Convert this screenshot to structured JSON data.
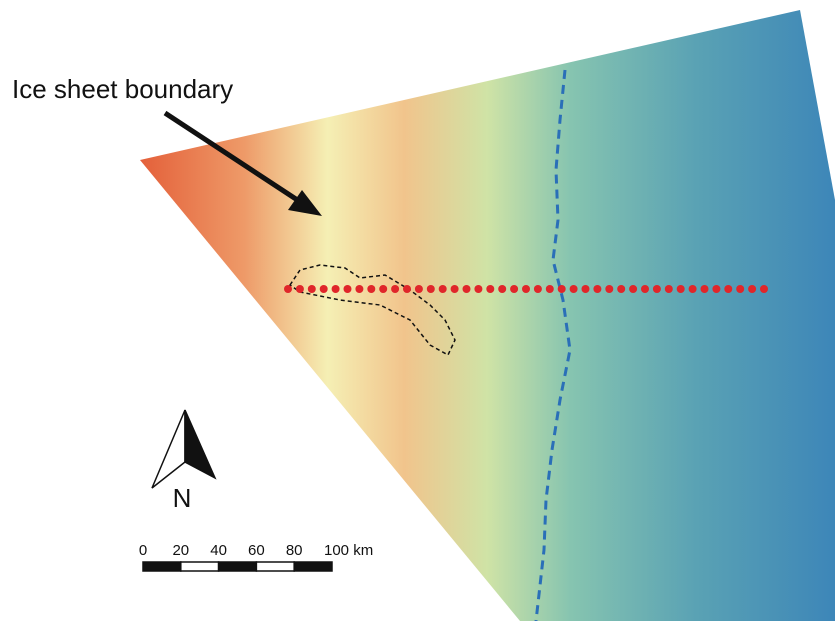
{
  "annotation": "Ice sheet boundary",
  "north_arrow": {
    "label": "N"
  },
  "scale_bar": {
    "labels": [
      "0",
      "20",
      "40",
      "60",
      "80",
      "100 km"
    ]
  }
}
